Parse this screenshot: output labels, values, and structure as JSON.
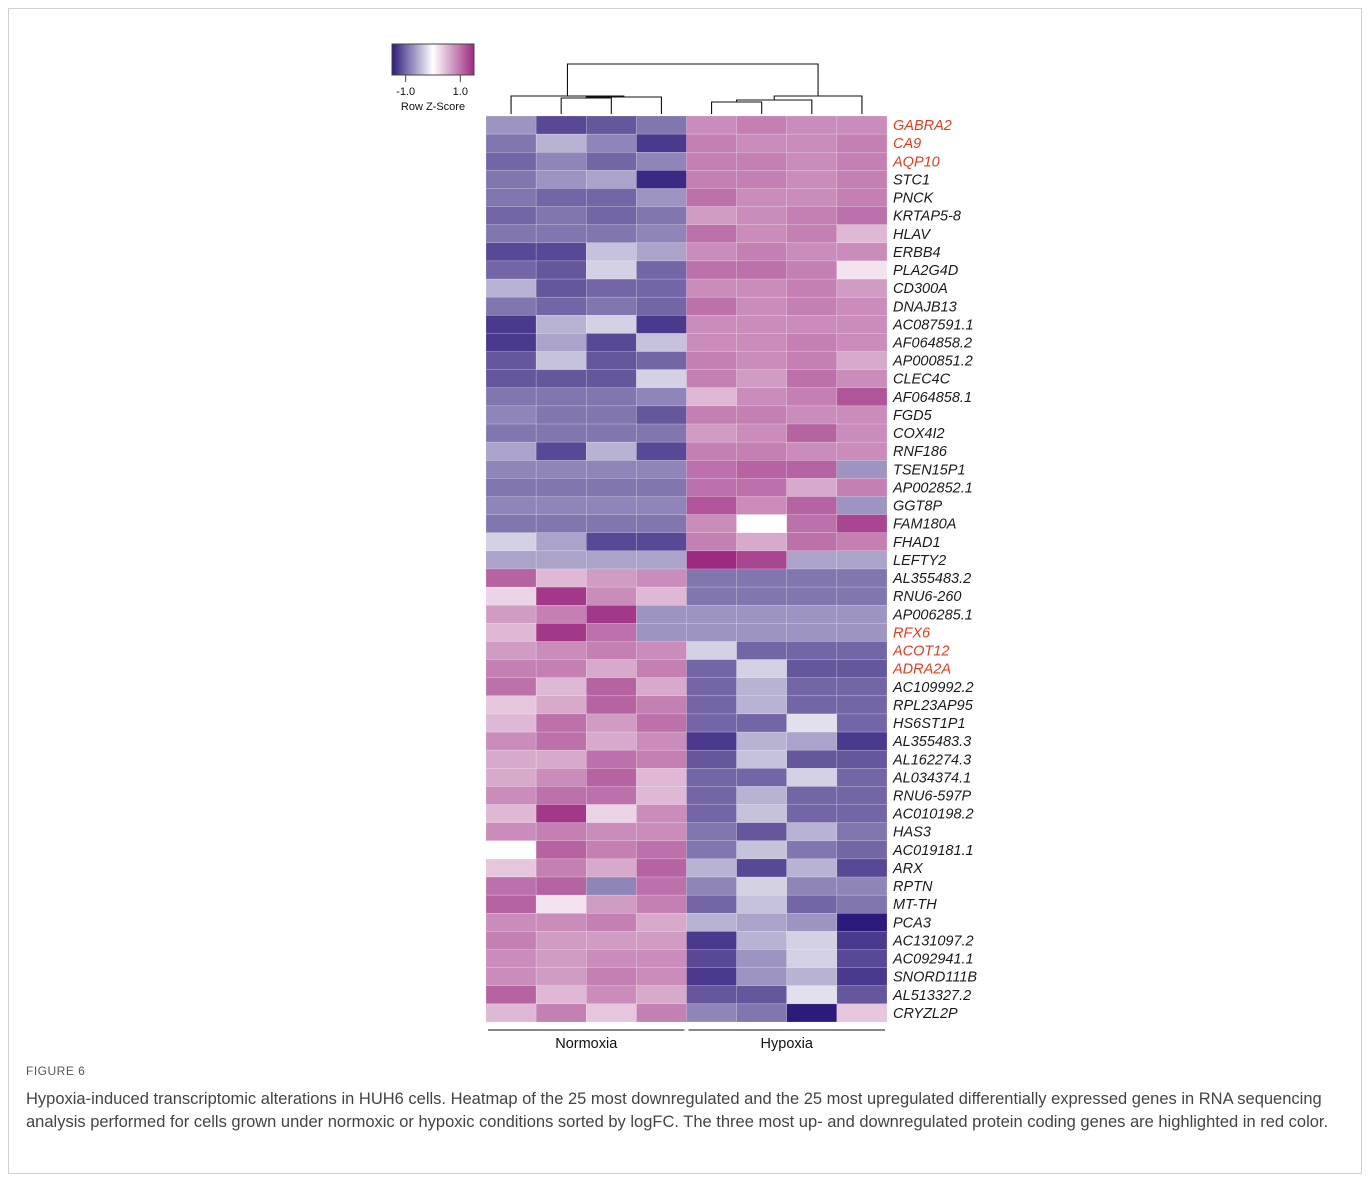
{
  "figure": {
    "label": "FIGURE 6",
    "caption": "Hypoxia-induced transcriptomic alterations in HUH6 cells. Heatmap of the 25 most downregulated and the 25 most upregulated differentially expressed genes in RNA sequencing analysis performed for cells grown under normoxic or hypoxic conditions sorted by logFC. The three most up- and downregulated protein coding genes are highlighted in red color."
  },
  "colors": {
    "low": "#2e1a7a",
    "mid": "#ffffff",
    "high": "#9c2a80",
    "highlight_gene": "#e03c1f",
    "gene_text": "#1a1a1a"
  },
  "chart_data": {
    "type": "heatmap",
    "legend": {
      "title": "Row Z-Score",
      "ticks": [
        "-1.0",
        "1.0"
      ],
      "tick_values": [
        -1.0,
        1.0
      ],
      "range": [
        -1.5,
        1.5
      ]
    },
    "groups": [
      {
        "name": "Normoxia",
        "columns": [
          0,
          1,
          2,
          3
        ]
      },
      {
        "name": "Hypoxia",
        "columns": [
          4,
          5,
          6,
          7
        ]
      }
    ],
    "genes": [
      {
        "name": "GABRA2",
        "highlight": true,
        "values": [
          -0.7,
          -1.2,
          -1.1,
          -0.9,
          0.8,
          0.9,
          0.8,
          0.8
        ]
      },
      {
        "name": "CA9",
        "highlight": true,
        "values": [
          -0.9,
          -0.5,
          -0.8,
          -1.3,
          0.9,
          0.8,
          0.8,
          0.9
        ]
      },
      {
        "name": "AQP10",
        "highlight": true,
        "values": [
          -1.0,
          -0.8,
          -1.0,
          -0.8,
          0.9,
          0.9,
          0.8,
          0.9
        ]
      },
      {
        "name": "STC1",
        "highlight": false,
        "values": [
          -0.9,
          -0.7,
          -0.6,
          -1.4,
          0.9,
          0.9,
          0.8,
          0.9
        ]
      },
      {
        "name": "PNCK",
        "highlight": false,
        "values": [
          -0.9,
          -1.0,
          -1.0,
          -0.7,
          1.0,
          0.8,
          0.8,
          0.9
        ]
      },
      {
        "name": "KRTAP5-8",
        "highlight": false,
        "values": [
          -1.0,
          -0.9,
          -1.0,
          -0.9,
          0.7,
          0.8,
          0.9,
          1.0
        ]
      },
      {
        "name": "HLAV",
        "highlight": false,
        "values": [
          -0.9,
          -0.9,
          -0.9,
          -0.8,
          1.0,
          0.8,
          0.9,
          0.5
        ]
      },
      {
        "name": "ERBB4",
        "highlight": false,
        "values": [
          -1.2,
          -1.2,
          -0.4,
          -0.6,
          0.8,
          0.9,
          0.8,
          0.8
        ]
      },
      {
        "name": "PLA2G4D",
        "highlight": false,
        "values": [
          -1.0,
          -1.1,
          -0.3,
          -1.0,
          1.0,
          1.0,
          0.9,
          0.2
        ]
      },
      {
        "name": "CD300A",
        "highlight": false,
        "values": [
          -0.5,
          -1.1,
          -1.0,
          -1.0,
          0.8,
          0.8,
          0.9,
          0.7
        ]
      },
      {
        "name": "DNAJB13",
        "highlight": false,
        "values": [
          -0.9,
          -1.0,
          -0.9,
          -1.0,
          1.0,
          0.8,
          0.9,
          0.8
        ]
      },
      {
        "name": "AC087591.1",
        "highlight": false,
        "values": [
          -1.3,
          -0.5,
          -0.3,
          -1.3,
          0.8,
          0.8,
          0.8,
          0.8
        ]
      },
      {
        "name": "AF064858.2",
        "highlight": false,
        "values": [
          -1.3,
          -0.6,
          -1.2,
          -0.4,
          0.8,
          0.8,
          0.9,
          0.8
        ]
      },
      {
        "name": "AP000851.2",
        "highlight": false,
        "values": [
          -1.1,
          -0.4,
          -1.1,
          -1.0,
          0.9,
          0.8,
          0.9,
          0.6
        ]
      },
      {
        "name": "CLEC4C",
        "highlight": false,
        "values": [
          -1.1,
          -1.1,
          -1.1,
          -0.3,
          0.9,
          0.7,
          1.0,
          0.8
        ]
      },
      {
        "name": "AF064858.1",
        "highlight": false,
        "values": [
          -0.9,
          -0.9,
          -0.9,
          -0.8,
          0.5,
          0.8,
          0.9,
          1.2
        ]
      },
      {
        "name": "FGD5",
        "highlight": false,
        "values": [
          -0.8,
          -0.9,
          -0.9,
          -1.1,
          0.9,
          0.9,
          0.8,
          0.8
        ]
      },
      {
        "name": "COX4I2",
        "highlight": false,
        "values": [
          -0.9,
          -0.9,
          -0.9,
          -0.9,
          0.7,
          0.8,
          1.1,
          0.8
        ]
      },
      {
        "name": "RNF186",
        "highlight": false,
        "values": [
          -0.6,
          -1.2,
          -0.5,
          -1.2,
          0.9,
          0.9,
          0.8,
          0.8
        ]
      },
      {
        "name": "TSEN15P1",
        "highlight": false,
        "values": [
          -0.8,
          -0.8,
          -0.8,
          -0.8,
          1.0,
          1.1,
          1.1,
          -0.7
        ]
      },
      {
        "name": "AP002852.1",
        "highlight": false,
        "values": [
          -0.9,
          -0.9,
          -0.9,
          -0.9,
          1.0,
          1.0,
          0.6,
          0.9
        ]
      },
      {
        "name": "GGT8P",
        "highlight": false,
        "values": [
          -0.8,
          -0.8,
          -0.8,
          -0.8,
          1.2,
          0.8,
          1.1,
          -0.7
        ]
      },
      {
        "name": "FAM180A",
        "highlight": false,
        "values": [
          -0.9,
          -0.9,
          -0.9,
          -0.9,
          0.8,
          0.0,
          1.0,
          1.3
        ]
      },
      {
        "name": "FHAD1",
        "highlight": false,
        "values": [
          -0.3,
          -0.6,
          -1.2,
          -1.2,
          0.9,
          0.6,
          1.0,
          0.9
        ]
      },
      {
        "name": "LEFTY2",
        "highlight": false,
        "values": [
          -0.6,
          -0.6,
          -0.6,
          -0.6,
          1.5,
          1.3,
          -0.6,
          -0.6
        ]
      },
      {
        "name": "AL355483.2",
        "highlight": false,
        "values": [
          1.1,
          0.5,
          0.7,
          0.8,
          -0.9,
          -0.9,
          -0.9,
          -0.9
        ]
      },
      {
        "name": "RNU6-260",
        "highlight": false,
        "values": [
          0.3,
          1.4,
          0.8,
          0.5,
          -0.9,
          -0.9,
          -0.9,
          -0.9
        ]
      },
      {
        "name": "AP006285.1",
        "highlight": false,
        "values": [
          0.7,
          0.9,
          1.4,
          -0.7,
          -0.7,
          -0.7,
          -0.7,
          -0.7
        ]
      },
      {
        "name": "RFX6",
        "highlight": true,
        "values": [
          0.5,
          1.4,
          1.0,
          -0.7,
          -0.7,
          -0.7,
          -0.7,
          -0.7
        ]
      },
      {
        "name": "ACOT12",
        "highlight": true,
        "values": [
          0.7,
          0.8,
          0.9,
          0.8,
          -0.3,
          -1.0,
          -1.0,
          -1.0
        ]
      },
      {
        "name": "ADRA2A",
        "highlight": true,
        "values": [
          0.9,
          0.9,
          0.6,
          0.9,
          -1.0,
          -0.3,
          -1.1,
          -1.1
        ]
      },
      {
        "name": "AC109992.2",
        "highlight": false,
        "values": [
          1.0,
          0.5,
          1.1,
          0.6,
          -1.0,
          -0.5,
          -1.0,
          -1.0
        ]
      },
      {
        "name": "RPL23AP95",
        "highlight": false,
        "values": [
          0.4,
          0.6,
          1.1,
          0.9,
          -1.0,
          -0.5,
          -1.0,
          -1.0
        ]
      },
      {
        "name": "HS6ST1P1",
        "highlight": false,
        "values": [
          0.5,
          1.0,
          0.7,
          1.0,
          -1.0,
          -1.0,
          -0.2,
          -1.0
        ]
      },
      {
        "name": "AL355483.3",
        "highlight": false,
        "values": [
          0.8,
          1.0,
          0.6,
          0.8,
          -1.3,
          -0.5,
          -0.6,
          -1.3
        ]
      },
      {
        "name": "AL162274.3",
        "highlight": false,
        "values": [
          0.6,
          0.6,
          1.0,
          0.9,
          -1.1,
          -0.4,
          -1.1,
          -1.1
        ]
      },
      {
        "name": "AL034374.1",
        "highlight": false,
        "values": [
          0.6,
          0.8,
          1.1,
          0.5,
          -1.0,
          -1.0,
          -0.3,
          -1.0
        ]
      },
      {
        "name": "RNU6-597P",
        "highlight": false,
        "values": [
          0.8,
          1.0,
          1.0,
          0.5,
          -1.0,
          -0.5,
          -1.0,
          -1.0
        ]
      },
      {
        "name": "AC010198.2",
        "highlight": false,
        "values": [
          0.5,
          1.4,
          0.3,
          0.8,
          -1.0,
          -0.4,
          -1.0,
          -1.0
        ]
      },
      {
        "name": "HAS3",
        "highlight": false,
        "values": [
          0.8,
          0.9,
          0.8,
          0.8,
          -0.9,
          -1.1,
          -0.5,
          -0.9
        ]
      },
      {
        "name": "AC019181.1",
        "highlight": false,
        "values": [
          0.0,
          1.1,
          0.9,
          1.0,
          -0.9,
          -0.4,
          -0.9,
          -1.0
        ]
      },
      {
        "name": "ARX",
        "highlight": false,
        "values": [
          0.4,
          0.9,
          0.6,
          1.1,
          -0.5,
          -1.2,
          -0.5,
          -1.2
        ]
      },
      {
        "name": "RPTN",
        "highlight": false,
        "values": [
          1.0,
          1.1,
          -0.8,
          1.0,
          -0.8,
          -0.3,
          -0.8,
          -0.8
        ]
      },
      {
        "name": "MT-TH",
        "highlight": false,
        "values": [
          1.1,
          0.2,
          0.7,
          0.9,
          -1.0,
          -0.4,
          -1.0,
          -0.9
        ]
      },
      {
        "name": "PCA3",
        "highlight": false,
        "values": [
          0.8,
          0.8,
          0.9,
          0.6,
          -0.5,
          -0.6,
          -0.7,
          -1.5
        ]
      },
      {
        "name": "AC131097.2",
        "highlight": false,
        "values": [
          0.9,
          0.7,
          0.7,
          0.7,
          -1.3,
          -0.5,
          -0.3,
          -1.3
        ]
      },
      {
        "name": "AC092941.1",
        "highlight": false,
        "values": [
          0.8,
          0.7,
          0.8,
          0.8,
          -1.2,
          -0.7,
          -0.3,
          -1.2
        ]
      },
      {
        "name": "SNORD111B",
        "highlight": false,
        "values": [
          0.8,
          0.7,
          0.9,
          0.8,
          -1.3,
          -0.7,
          -0.5,
          -1.3
        ]
      },
      {
        "name": "AL513327.2",
        "highlight": false,
        "values": [
          1.1,
          0.5,
          0.8,
          0.6,
          -1.1,
          -1.1,
          -0.2,
          -1.1
        ]
      },
      {
        "name": "CRYZL2P",
        "highlight": false,
        "values": [
          0.5,
          0.9,
          0.4,
          0.9,
          -0.8,
          -0.9,
          -1.5,
          0.4
        ]
      }
    ]
  }
}
